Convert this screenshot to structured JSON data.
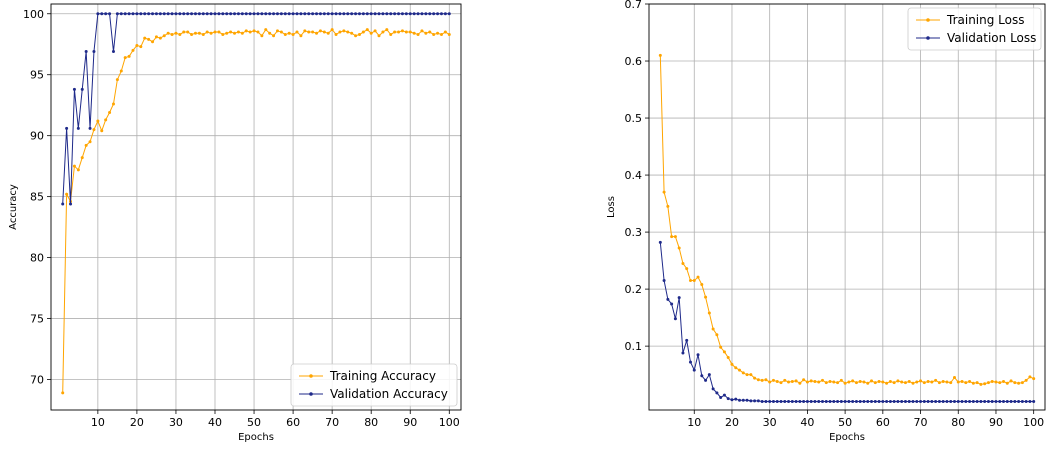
{
  "chart_data": [
    {
      "type": "line",
      "xlabel": "Epochs",
      "ylabel": "Accuracy",
      "xlim": [
        -2,
        103
      ],
      "ylim": [
        67.5,
        100.8
      ],
      "xticks": [
        10,
        20,
        30,
        40,
        50,
        60,
        70,
        80,
        90,
        100
      ],
      "yticks": [
        70,
        75,
        80,
        85,
        90,
        95,
        100
      ],
      "grid": true,
      "legend_position": "lower-right",
      "x": [
        1,
        2,
        3,
        4,
        5,
        6,
        7,
        8,
        9,
        10,
        11,
        12,
        13,
        14,
        15,
        16,
        17,
        18,
        19,
        20,
        21,
        22,
        23,
        24,
        25,
        26,
        27,
        28,
        29,
        30,
        31,
        32,
        33,
        34,
        35,
        36,
        37,
        38,
        39,
        40,
        41,
        42,
        43,
        44,
        45,
        46,
        47,
        48,
        49,
        50,
        51,
        52,
        53,
        54,
        55,
        56,
        57,
        58,
        59,
        60,
        61,
        62,
        63,
        64,
        65,
        66,
        67,
        68,
        69,
        70,
        71,
        72,
        73,
        74,
        75,
        76,
        77,
        78,
        79,
        80,
        81,
        82,
        83,
        84,
        85,
        86,
        87,
        88,
        89,
        90,
        91,
        92,
        93,
        94,
        95,
        96,
        97,
        98,
        99,
        100
      ],
      "series": [
        {
          "name": "Training Accuracy",
          "color": "#FFA500",
          "values": [
            68.9,
            85.2,
            84.6,
            87.5,
            87.2,
            88.2,
            89.2,
            89.5,
            90.5,
            91.2,
            90.4,
            91.3,
            91.9,
            92.6,
            94.6,
            95.3,
            96.4,
            96.5,
            97.0,
            97.4,
            97.3,
            98.0,
            97.9,
            97.7,
            98.1,
            98.0,
            98.2,
            98.4,
            98.3,
            98.4,
            98.3,
            98.5,
            98.5,
            98.3,
            98.4,
            98.4,
            98.3,
            98.5,
            98.4,
            98.5,
            98.5,
            98.3,
            98.4,
            98.5,
            98.4,
            98.5,
            98.4,
            98.6,
            98.5,
            98.6,
            98.5,
            98.2,
            98.7,
            98.4,
            98.2,
            98.6,
            98.5,
            98.3,
            98.4,
            98.3,
            98.5,
            98.2,
            98.6,
            98.5,
            98.5,
            98.4,
            98.6,
            98.5,
            98.4,
            98.7,
            98.3,
            98.5,
            98.6,
            98.5,
            98.4,
            98.2,
            98.3,
            98.5,
            98.7,
            98.4,
            98.6,
            98.2,
            98.5,
            98.7,
            98.3,
            98.5,
            98.5,
            98.6,
            98.5,
            98.5,
            98.4,
            98.3,
            98.6,
            98.4,
            98.5,
            98.3,
            98.4,
            98.3,
            98.5,
            98.3
          ]
        },
        {
          "name": "Validation Accuracy",
          "color": "#1F2A8A",
          "values": [
            84.4,
            90.6,
            84.4,
            93.8,
            90.6,
            93.8,
            96.9,
            90.6,
            96.9,
            100,
            100,
            100,
            100,
            96.9,
            100,
            100,
            100,
            100,
            100,
            100,
            100,
            100,
            100,
            100,
            100,
            100,
            100,
            100,
            100,
            100,
            100,
            100,
            100,
            100,
            100,
            100,
            100,
            100,
            100,
            100,
            100,
            100,
            100,
            100,
            100,
            100,
            100,
            100,
            100,
            100,
            100,
            100,
            100,
            100,
            100,
            100,
            100,
            100,
            100,
            100,
            100,
            100,
            100,
            100,
            100,
            100,
            100,
            100,
            100,
            100,
            100,
            100,
            100,
            100,
            100,
            100,
            100,
            100,
            100,
            100,
            100,
            100,
            100,
            100,
            100,
            100,
            100,
            100,
            100,
            100,
            100,
            100,
            100,
            100,
            100,
            100,
            100,
            100,
            100,
            100
          ]
        }
      ]
    },
    {
      "type": "line",
      "xlabel": "Epochs",
      "ylabel": "Loss",
      "xlim": [
        -2,
        103
      ],
      "ylim": [
        -0.012,
        0.7
      ],
      "xticks": [
        10,
        20,
        30,
        40,
        50,
        60,
        70,
        80,
        90,
        100
      ],
      "yticks": [
        0.1,
        0.2,
        0.3,
        0.4,
        0.5,
        0.6,
        0.7
      ],
      "grid": true,
      "legend_position": "upper-right",
      "x": [
        1,
        2,
        3,
        4,
        5,
        6,
        7,
        8,
        9,
        10,
        11,
        12,
        13,
        14,
        15,
        16,
        17,
        18,
        19,
        20,
        21,
        22,
        23,
        24,
        25,
        26,
        27,
        28,
        29,
        30,
        31,
        32,
        33,
        34,
        35,
        36,
        37,
        38,
        39,
        40,
        41,
        42,
        43,
        44,
        45,
        46,
        47,
        48,
        49,
        50,
        51,
        52,
        53,
        54,
        55,
        56,
        57,
        58,
        59,
        60,
        61,
        62,
        63,
        64,
        65,
        66,
        67,
        68,
        69,
        70,
        71,
        72,
        73,
        74,
        75,
        76,
        77,
        78,
        79,
        80,
        81,
        82,
        83,
        84,
        85,
        86,
        87,
        88,
        89,
        90,
        91,
        92,
        93,
        94,
        95,
        96,
        97,
        98,
        99,
        100
      ],
      "series": [
        {
          "name": "Training Loss",
          "color": "#FFA500",
          "values": [
            0.61,
            0.37,
            0.345,
            0.292,
            0.292,
            0.272,
            0.245,
            0.236,
            0.215,
            0.215,
            0.221,
            0.208,
            0.186,
            0.158,
            0.13,
            0.12,
            0.098,
            0.09,
            0.08,
            0.068,
            0.062,
            0.058,
            0.053,
            0.05,
            0.05,
            0.044,
            0.041,
            0.04,
            0.041,
            0.037,
            0.04,
            0.038,
            0.036,
            0.04,
            0.037,
            0.038,
            0.039,
            0.035,
            0.041,
            0.037,
            0.039,
            0.038,
            0.037,
            0.04,
            0.036,
            0.038,
            0.037,
            0.036,
            0.04,
            0.035,
            0.037,
            0.039,
            0.036,
            0.038,
            0.037,
            0.035,
            0.039,
            0.036,
            0.038,
            0.037,
            0.035,
            0.038,
            0.036,
            0.039,
            0.037,
            0.036,
            0.038,
            0.035,
            0.037,
            0.039,
            0.036,
            0.038,
            0.037,
            0.04,
            0.036,
            0.038,
            0.037,
            0.036,
            0.045,
            0.037,
            0.038,
            0.036,
            0.038,
            0.035,
            0.036,
            0.033,
            0.034,
            0.036,
            0.038,
            0.037,
            0.036,
            0.038,
            0.035,
            0.039,
            0.036,
            0.035,
            0.036,
            0.04,
            0.046,
            0.043
          ]
        },
        {
          "name": "Validation Loss",
          "color": "#1F2A8A",
          "values": [
            0.282,
            0.215,
            0.182,
            0.174,
            0.148,
            0.185,
            0.088,
            0.11,
            0.072,
            0.058,
            0.085,
            0.048,
            0.04,
            0.05,
            0.025,
            0.018,
            0.01,
            0.014,
            0.008,
            0.006,
            0.007,
            0.005,
            0.005,
            0.005,
            0.004,
            0.004,
            0.004,
            0.003,
            0.003,
            0.003,
            0.003,
            0.003,
            0.003,
            0.003,
            0.003,
            0.003,
            0.003,
            0.003,
            0.003,
            0.003,
            0.003,
            0.003,
            0.003,
            0.003,
            0.003,
            0.003,
            0.003,
            0.003,
            0.003,
            0.003,
            0.003,
            0.003,
            0.003,
            0.003,
            0.003,
            0.003,
            0.003,
            0.003,
            0.003,
            0.003,
            0.003,
            0.003,
            0.003,
            0.003,
            0.003,
            0.003,
            0.003,
            0.003,
            0.003,
            0.003,
            0.003,
            0.003,
            0.003,
            0.003,
            0.003,
            0.003,
            0.003,
            0.003,
            0.003,
            0.003,
            0.003,
            0.003,
            0.003,
            0.003,
            0.003,
            0.003,
            0.003,
            0.003,
            0.003,
            0.003,
            0.003,
            0.003,
            0.003,
            0.003,
            0.003,
            0.003,
            0.003,
            0.003,
            0.003,
            0.003
          ]
        }
      ]
    }
  ]
}
